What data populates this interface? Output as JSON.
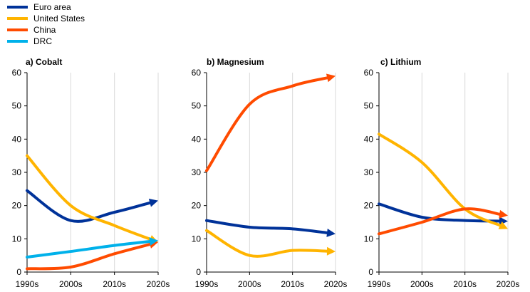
{
  "legend": {
    "items": [
      {
        "name": "Euro area",
        "color": "#003299"
      },
      {
        "name": "United States",
        "color": "#ffb400"
      },
      {
        "name": "China",
        "color": "#ff4b00"
      },
      {
        "name": "DRC",
        "color": "#00b1ea"
      }
    ]
  },
  "chart_data": [
    {
      "type": "line",
      "title": "a) Cobalt",
      "categories": [
        "1990s",
        "2000s",
        "2010s",
        "2020s"
      ],
      "ylim": [
        0,
        60
      ],
      "yticks": [
        0,
        10,
        20,
        30,
        40,
        50,
        60
      ],
      "grid": "vertical",
      "series": [
        {
          "name": "Euro area",
          "values": [
            24.5,
            15.5,
            18,
            21.5
          ]
        },
        {
          "name": "United States",
          "values": [
            35,
            20,
            14,
            9
          ]
        },
        {
          "name": "China",
          "values": [
            1,
            1.5,
            5.5,
            9
          ]
        },
        {
          "name": "DRC",
          "values": [
            4.5,
            6.2,
            8,
            9.5
          ]
        }
      ]
    },
    {
      "type": "line",
      "title": "b) Magnesium",
      "categories": [
        "1990s",
        "2000s",
        "2010s",
        "2020s"
      ],
      "ylim": [
        0,
        60
      ],
      "yticks": [
        0,
        10,
        20,
        30,
        40,
        50,
        60
      ],
      "grid": "vertical",
      "series": [
        {
          "name": "Euro area",
          "values": [
            15.5,
            13.5,
            13,
            11.5
          ]
        },
        {
          "name": "United States",
          "values": [
            12.5,
            5,
            6.5,
            6.2
          ]
        },
        {
          "name": "China",
          "values": [
            30.5,
            50.5,
            56,
            59
          ]
        }
      ]
    },
    {
      "type": "line",
      "title": "c) Lithium",
      "categories": [
        "1990s",
        "2000s",
        "2010s",
        "2020s"
      ],
      "ylim": [
        0,
        60
      ],
      "yticks": [
        0,
        10,
        20,
        30,
        40,
        50,
        60
      ],
      "grid": "vertical",
      "series": [
        {
          "name": "Euro area",
          "values": [
            20.5,
            16.5,
            15.5,
            15.3
          ]
        },
        {
          "name": "United States",
          "values": [
            41.5,
            33,
            19,
            13
          ]
        },
        {
          "name": "China",
          "values": [
            11.5,
            15,
            19,
            17
          ]
        }
      ]
    }
  ]
}
